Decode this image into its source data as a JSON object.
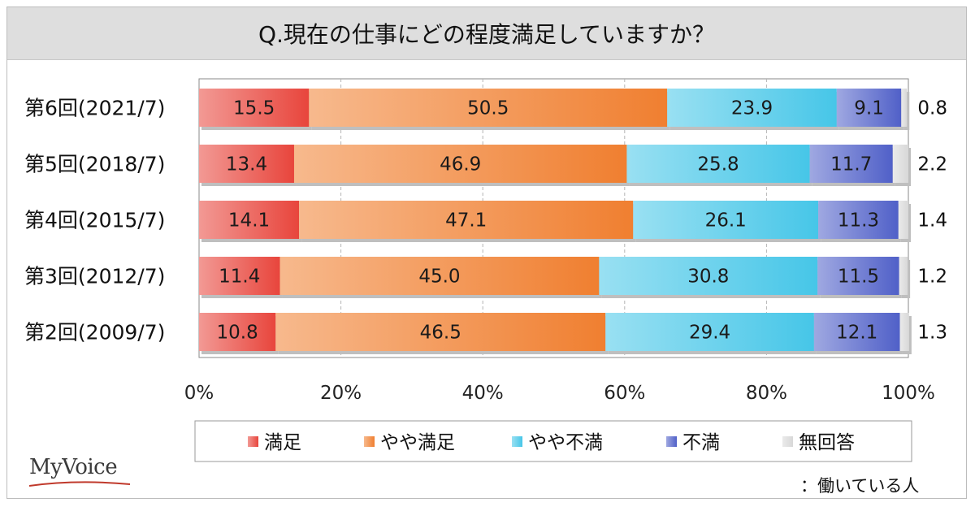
{
  "title": "Q.現在の仕事にどの程度満足していますか？",
  "note": "：働いている人",
  "logo_text": "MyVoice",
  "chart_data": {
    "type": "bar",
    "orientation": "horizontal-stacked-100",
    "categories": [
      "第6回(2021/7)",
      "第5回(2018/7)",
      "第4回(2015/7)",
      "第3回(2012/7)",
      "第2回(2009/7)"
    ],
    "series": [
      {
        "name": "満足",
        "color": "#e8453c",
        "values": [
          15.5,
          13.4,
          14.1,
          11.4,
          10.8
        ]
      },
      {
        "name": "やや満足",
        "color": "#f07f30",
        "values": [
          50.5,
          46.9,
          47.1,
          45.0,
          46.5
        ]
      },
      {
        "name": "やや不満",
        "color": "#46c6e8",
        "values": [
          23.9,
          25.8,
          26.1,
          30.8,
          29.4
        ]
      },
      {
        "name": "不満",
        "color": "#5060c8",
        "values": [
          9.1,
          11.7,
          11.3,
          11.5,
          12.1
        ]
      },
      {
        "name": "無回答",
        "color": "#d8d8d8",
        "values": [
          0.8,
          2.2,
          1.4,
          1.2,
          1.3
        ]
      }
    ],
    "value_labels": {
      "inside": [
        [
          "15.5",
          "50.5",
          "23.9",
          "9.1"
        ],
        [
          "13.4",
          "46.9",
          "25.8",
          "11.7"
        ],
        [
          "14.1",
          "47.1",
          "26.1",
          "11.3"
        ],
        [
          "11.4",
          "45.0",
          "30.8",
          "11.5"
        ],
        [
          "10.8",
          "46.5",
          "29.4",
          "12.1"
        ]
      ],
      "outside": [
        "0.8",
        "2.2",
        "1.4",
        "1.2",
        "1.3"
      ]
    },
    "x_ticks": [
      "0%",
      "20%",
      "40%",
      "60%",
      "80%",
      "100%"
    ],
    "xlim": [
      0,
      100
    ],
    "grid": "vertical dashed",
    "legend_position": "bottom"
  }
}
